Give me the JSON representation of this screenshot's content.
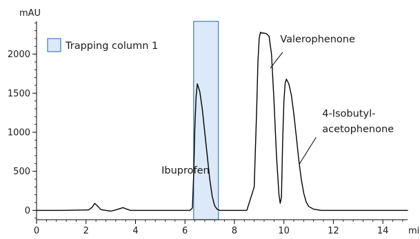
{
  "chart_data": {
    "type": "line",
    "ylabel": "mAU",
    "xlabel": "min",
    "xlim": [
      0,
      15
    ],
    "ylim": [
      -120,
      2420
    ],
    "x_ticks": [
      0,
      2,
      4,
      6,
      8,
      10,
      12,
      14
    ],
    "y_ticks": [
      0,
      500,
      1000,
      1500,
      2000
    ],
    "x_minor_step": 0.4,
    "y_minor_step": 100,
    "grid": false,
    "line_color": "#000000",
    "trap_fill": "#dce9f8",
    "trap_stroke": "#3a7cc3",
    "legend": {
      "label": "Trapping column 1",
      "position": "top-left"
    },
    "trapping_window": [
      6.35,
      7.35
    ],
    "series": [
      {
        "x": [
          0,
          1.0,
          2.1,
          2.25,
          2.35,
          2.45,
          2.6,
          2.8,
          3.0,
          3.2,
          3.4,
          3.5,
          3.6,
          3.8,
          4.0,
          5.0,
          6.0,
          6.2,
          6.3,
          6.35,
          6.4,
          6.45,
          6.5,
          6.6,
          6.7,
          6.8,
          6.9,
          7.0,
          7.1,
          7.2,
          7.3,
          7.4,
          7.6,
          8.0,
          8.5,
          8.8,
          8.9,
          8.95,
          9.0,
          9.05,
          9.1,
          9.2,
          9.3,
          9.4,
          9.5,
          9.6,
          9.7,
          9.8,
          9.85,
          9.9,
          9.95,
          10.0,
          10.05,
          10.1,
          10.15,
          10.2,
          10.3,
          10.4,
          10.5,
          10.6,
          10.7,
          10.8,
          10.9,
          11.0,
          11.2,
          11.5,
          12.0,
          13.0,
          15.0
        ],
        "y": [
          0,
          0,
          5,
          40,
          90,
          60,
          10,
          0,
          -10,
          5,
          25,
          35,
          20,
          0,
          0,
          0,
          0,
          0,
          30,
          450,
          1050,
          1450,
          1620,
          1520,
          1300,
          1000,
          700,
          400,
          180,
          60,
          15,
          0,
          0,
          0,
          0,
          300,
          1300,
          1900,
          2200,
          2280,
          2270,
          2270,
          2260,
          2230,
          2000,
          1400,
          700,
          200,
          90,
          170,
          900,
          1400,
          1630,
          1680,
          1650,
          1620,
          1480,
          1240,
          950,
          650,
          400,
          220,
          110,
          50,
          15,
          0,
          0,
          0,
          0
        ]
      }
    ],
    "annotations": [
      {
        "text": "Ibuprofen",
        "x": 5.05,
        "y": 470
      },
      {
        "text": "Valerophenone",
        "x": 9.85,
        "y": 2150
      },
      {
        "text": "4-Isobutyl-",
        "x": 11.55,
        "y": 1200
      },
      {
        "text": "acetophenone",
        "x": 11.55,
        "y": 1000
      }
    ],
    "pointers": [
      {
        "from": [
          9.95,
          2025
        ],
        "to": [
          9.45,
          1820
        ]
      },
      {
        "from": [
          11.3,
          935
        ],
        "to": [
          10.62,
          590
        ]
      }
    ]
  }
}
